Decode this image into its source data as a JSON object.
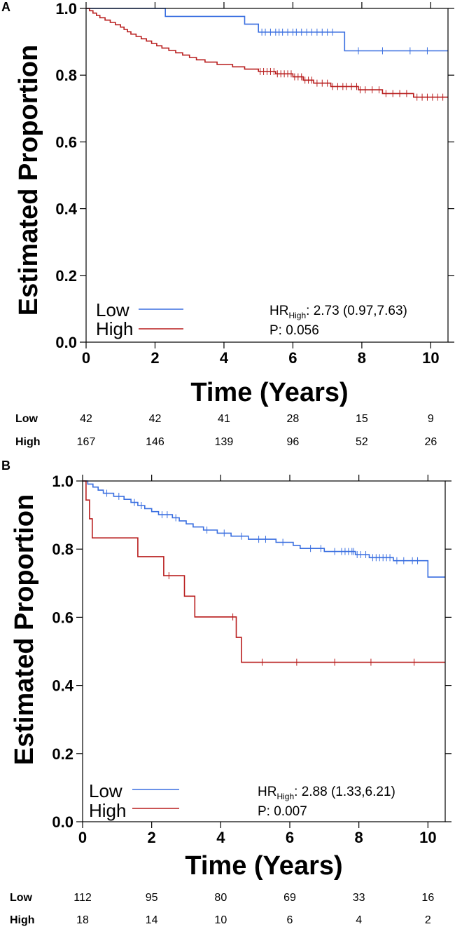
{
  "colors": {
    "low": "#3a6fe0",
    "high": "#b81d1d",
    "axis": "#000000"
  },
  "chart_data": [
    {
      "type": "line",
      "panel_label": "A",
      "xlabel": "Time (Years)",
      "ylabel": "Estimated Proportion",
      "xlim": [
        0,
        10.5
      ],
      "ylim": [
        0,
        1.0
      ],
      "xticks": [
        "0",
        "2",
        "4",
        "6",
        "8",
        "10"
      ],
      "yticks": [
        "0.0",
        "0.2",
        "0.4",
        "0.6",
        "0.8",
        "1.0"
      ],
      "legend": {
        "position": "bottom-left",
        "entries": [
          "Low",
          "High"
        ]
      },
      "stats": {
        "hr_prefix": "HR",
        "hr_sub": "High",
        "hr_text": ": 2.73 (0.97,7.63)",
        "p_text": "P: 0.056"
      },
      "series": [
        {
          "name": "Low",
          "color": "#3a6fe0",
          "steps": [
            [
              0,
              1.0
            ],
            [
              2.3,
              0.976
            ],
            [
              4.6,
              0.953
            ],
            [
              5.0,
              0.929
            ],
            [
              7.5,
              0.873
            ]
          ],
          "end_x": 10.5,
          "censors": [
            5.1,
            5.2,
            5.35,
            5.5,
            5.6,
            5.7,
            5.85,
            6.0,
            6.1,
            6.25,
            6.4,
            6.55,
            6.7,
            6.85,
            7.0,
            7.15,
            7.9,
            8.6,
            9.4,
            9.9
          ]
        },
        {
          "name": "High",
          "color": "#b81d1d",
          "steps": [
            [
              0,
              1.0
            ],
            [
              0.1,
              0.993
            ],
            [
              0.2,
              0.986
            ],
            [
              0.3,
              0.979
            ],
            [
              0.4,
              0.972
            ],
            [
              0.55,
              0.965
            ],
            [
              0.7,
              0.958
            ],
            [
              0.85,
              0.951
            ],
            [
              1.0,
              0.944
            ],
            [
              1.1,
              0.937
            ],
            [
              1.2,
              0.93
            ],
            [
              1.3,
              0.923
            ],
            [
              1.45,
              0.916
            ],
            [
              1.6,
              0.909
            ],
            [
              1.75,
              0.902
            ],
            [
              1.9,
              0.895
            ],
            [
              2.05,
              0.888
            ],
            [
              2.2,
              0.881
            ],
            [
              2.4,
              0.874
            ],
            [
              2.6,
              0.867
            ],
            [
              2.8,
              0.86
            ],
            [
              3.0,
              0.853
            ],
            [
              3.2,
              0.846
            ],
            [
              3.45,
              0.839
            ],
            [
              3.8,
              0.832
            ],
            [
              4.25,
              0.825
            ],
            [
              4.6,
              0.818
            ],
            [
              5.0,
              0.811
            ],
            [
              5.5,
              0.804
            ],
            [
              6.0,
              0.795
            ],
            [
              6.3,
              0.785
            ],
            [
              6.6,
              0.776
            ],
            [
              7.1,
              0.766
            ],
            [
              7.9,
              0.756
            ],
            [
              8.6,
              0.745
            ],
            [
              9.5,
              0.734
            ]
          ],
          "end_x": 10.5,
          "censors": [
            5.05,
            5.15,
            5.25,
            5.35,
            5.45,
            5.55,
            5.65,
            5.75,
            5.85,
            5.95,
            6.05,
            6.15,
            6.25,
            6.35,
            6.45,
            6.55,
            6.7,
            6.85,
            7.0,
            7.15,
            7.3,
            7.45,
            7.55,
            7.7,
            7.85,
            7.95,
            8.1,
            8.3,
            8.5,
            8.7,
            8.9,
            9.1,
            9.3,
            9.6,
            9.75,
            9.9,
            10.05,
            10.2,
            10.35
          ]
        }
      ],
      "risk_table": {
        "rows": [
          {
            "label": "Low",
            "values": [
              "42",
              "42",
              "41",
              "28",
              "15",
              "9"
            ]
          },
          {
            "label": "High",
            "values": [
              "167",
              "146",
              "139",
              "96",
              "52",
              "26"
            ]
          }
        ]
      }
    },
    {
      "type": "line",
      "panel_label": "B",
      "xlabel": "Time (Years)",
      "ylabel": "Estimated Proportion",
      "xlim": [
        0,
        10.5
      ],
      "ylim": [
        0,
        1.0
      ],
      "xticks": [
        "0",
        "2",
        "4",
        "6",
        "8",
        "10"
      ],
      "yticks": [
        "0.0",
        "0.2",
        "0.4",
        "0.6",
        "0.8",
        "1.0"
      ],
      "legend": {
        "position": "bottom-left",
        "entries": [
          "Low",
          "High"
        ]
      },
      "stats": {
        "hr_prefix": "HR",
        "hr_sub": "High",
        "hr_text": ": 2.88 (1.33,6.21)",
        "p_text": "P: 0.007"
      },
      "series": [
        {
          "name": "Low",
          "color": "#3a6fe0",
          "steps": [
            [
              0,
              1.0
            ],
            [
              0.15,
              0.991
            ],
            [
              0.3,
              0.982
            ],
            [
              0.45,
              0.973
            ],
            [
              0.6,
              0.964
            ],
            [
              0.9,
              0.955
            ],
            [
              1.2,
              0.946
            ],
            [
              1.4,
              0.937
            ],
            [
              1.6,
              0.928
            ],
            [
              1.8,
              0.919
            ],
            [
              2.0,
              0.91
            ],
            [
              2.2,
              0.901
            ],
            [
              2.6,
              0.892
            ],
            [
              2.8,
              0.883
            ],
            [
              3.0,
              0.874
            ],
            [
              3.2,
              0.865
            ],
            [
              3.5,
              0.856
            ],
            [
              3.9,
              0.847
            ],
            [
              4.3,
              0.838
            ],
            [
              4.8,
              0.829
            ],
            [
              5.6,
              0.82
            ],
            [
              6.1,
              0.811
            ],
            [
              6.3,
              0.802
            ],
            [
              7.0,
              0.793
            ],
            [
              7.9,
              0.784
            ],
            [
              8.3,
              0.775
            ],
            [
              9.0,
              0.766
            ],
            [
              10.0,
              0.718
            ]
          ],
          "end_x": 10.5,
          "censors": [
            0.7,
            1.05,
            1.5,
            1.7,
            2.3,
            2.45,
            2.7,
            3.6,
            4.1,
            4.6,
            5.1,
            5.3,
            5.8,
            6.6,
            6.9,
            7.3,
            7.5,
            7.6,
            7.7,
            7.8,
            7.85,
            7.95,
            8.05,
            8.2,
            8.4,
            8.5,
            8.6,
            8.7,
            8.8,
            8.9,
            9.1,
            9.3,
            9.55,
            9.7
          ]
        },
        {
          "name": "High",
          "color": "#b81d1d",
          "steps": [
            [
              0,
              1.0
            ],
            [
              0.1,
              0.944
            ],
            [
              0.2,
              0.889
            ],
            [
              0.28,
              0.833
            ],
            [
              1.6,
              0.778
            ],
            [
              2.35,
              0.722
            ],
            [
              2.95,
              0.662
            ],
            [
              3.25,
              0.601
            ],
            [
              4.45,
              0.541
            ],
            [
              4.6,
              0.468
            ]
          ],
          "end_x": 10.5,
          "censors": [
            2.5,
            4.35,
            5.2,
            6.2,
            7.3,
            8.35,
            9.6
          ]
        }
      ],
      "risk_table": {
        "rows": [
          {
            "label": "Low",
            "values": [
              "112",
              "95",
              "80",
              "69",
              "33",
              "16"
            ]
          },
          {
            "label": "High",
            "values": [
              "18",
              "14",
              "10",
              "6",
              "4",
              "2"
            ]
          }
        ]
      }
    }
  ]
}
